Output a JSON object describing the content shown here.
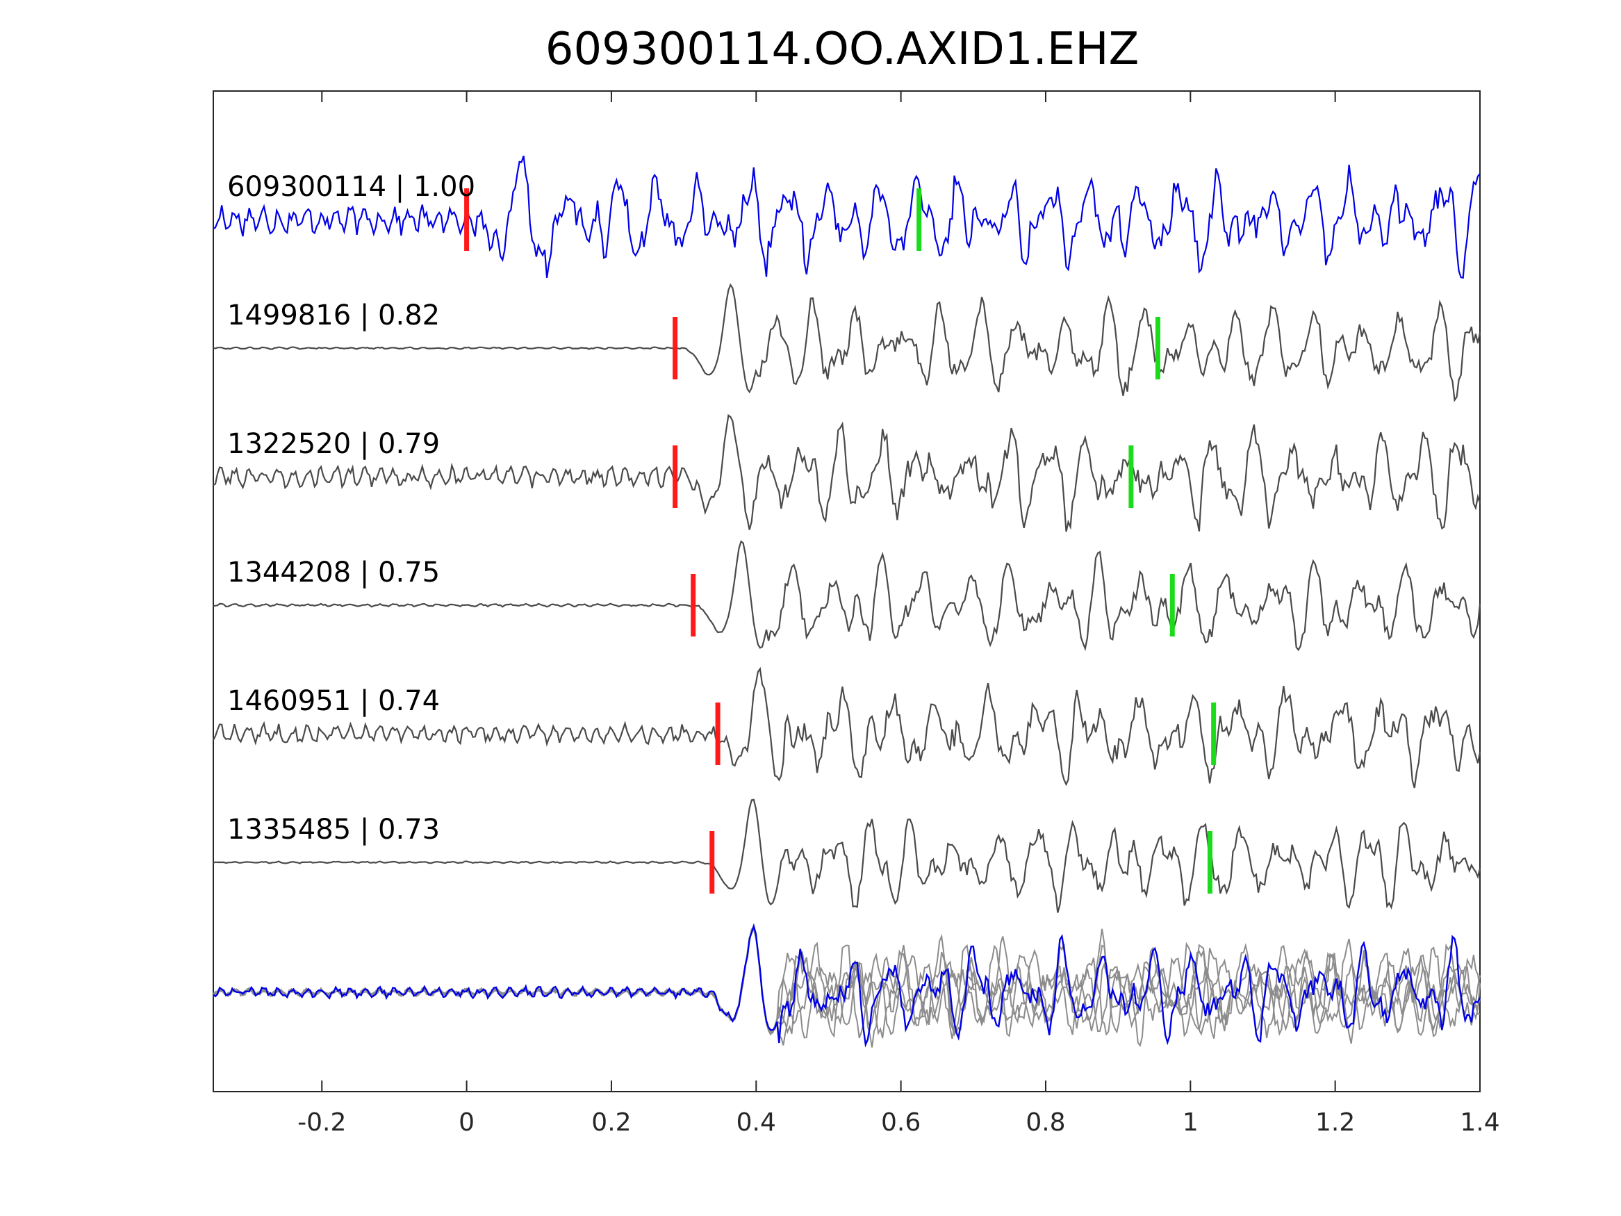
{
  "chart_data": {
    "type": "line",
    "title": "609300114.OO.AXID1.EHZ",
    "xlabel": "",
    "ylabel": "",
    "xlim": [
      -0.35,
      1.4
    ],
    "xticks": [
      -0.2,
      0,
      0.2,
      0.4,
      0.6,
      0.8,
      1,
      1.2,
      1.4
    ],
    "xtick_labels": [
      "-0.2",
      "0",
      "0.2",
      "0.4",
      "0.6",
      "0.8",
      "1",
      "1.2",
      "1.4"
    ],
    "y_axis_visible": false,
    "grid": false,
    "colors": {
      "template": "#0000e6",
      "trace": "#4a4a4a",
      "overlay": "#8c8c8c",
      "p_pick": "#ff1a1a",
      "s_pick": "#1adc1a",
      "axes": "#262626"
    },
    "series": [
      {
        "label": "609300114 | 1.00",
        "p_pick": 0.0,
        "s_pick": 0.625,
        "onset": 0.0
      },
      {
        "label": "1499816 | 0.82",
        "p_pick": 0.288,
        "s_pick": 0.955,
        "onset": 0.29
      },
      {
        "label": "1322520 | 0.79",
        "p_pick": 0.288,
        "s_pick": 0.918,
        "onset": 0.29
      },
      {
        "label": "1344208 | 0.75",
        "p_pick": 0.313,
        "s_pick": 0.975,
        "onset": 0.305
      },
      {
        "label": "1460951 | 0.74",
        "p_pick": 0.347,
        "s_pick": 1.032,
        "onset": 0.33
      },
      {
        "label": "1335485 | 0.73",
        "p_pick": 0.339,
        "s_pick": 1.027,
        "onset": 0.32
      }
    ],
    "stack": {
      "name": "aligned overlay",
      "onset": 0.32
    }
  }
}
